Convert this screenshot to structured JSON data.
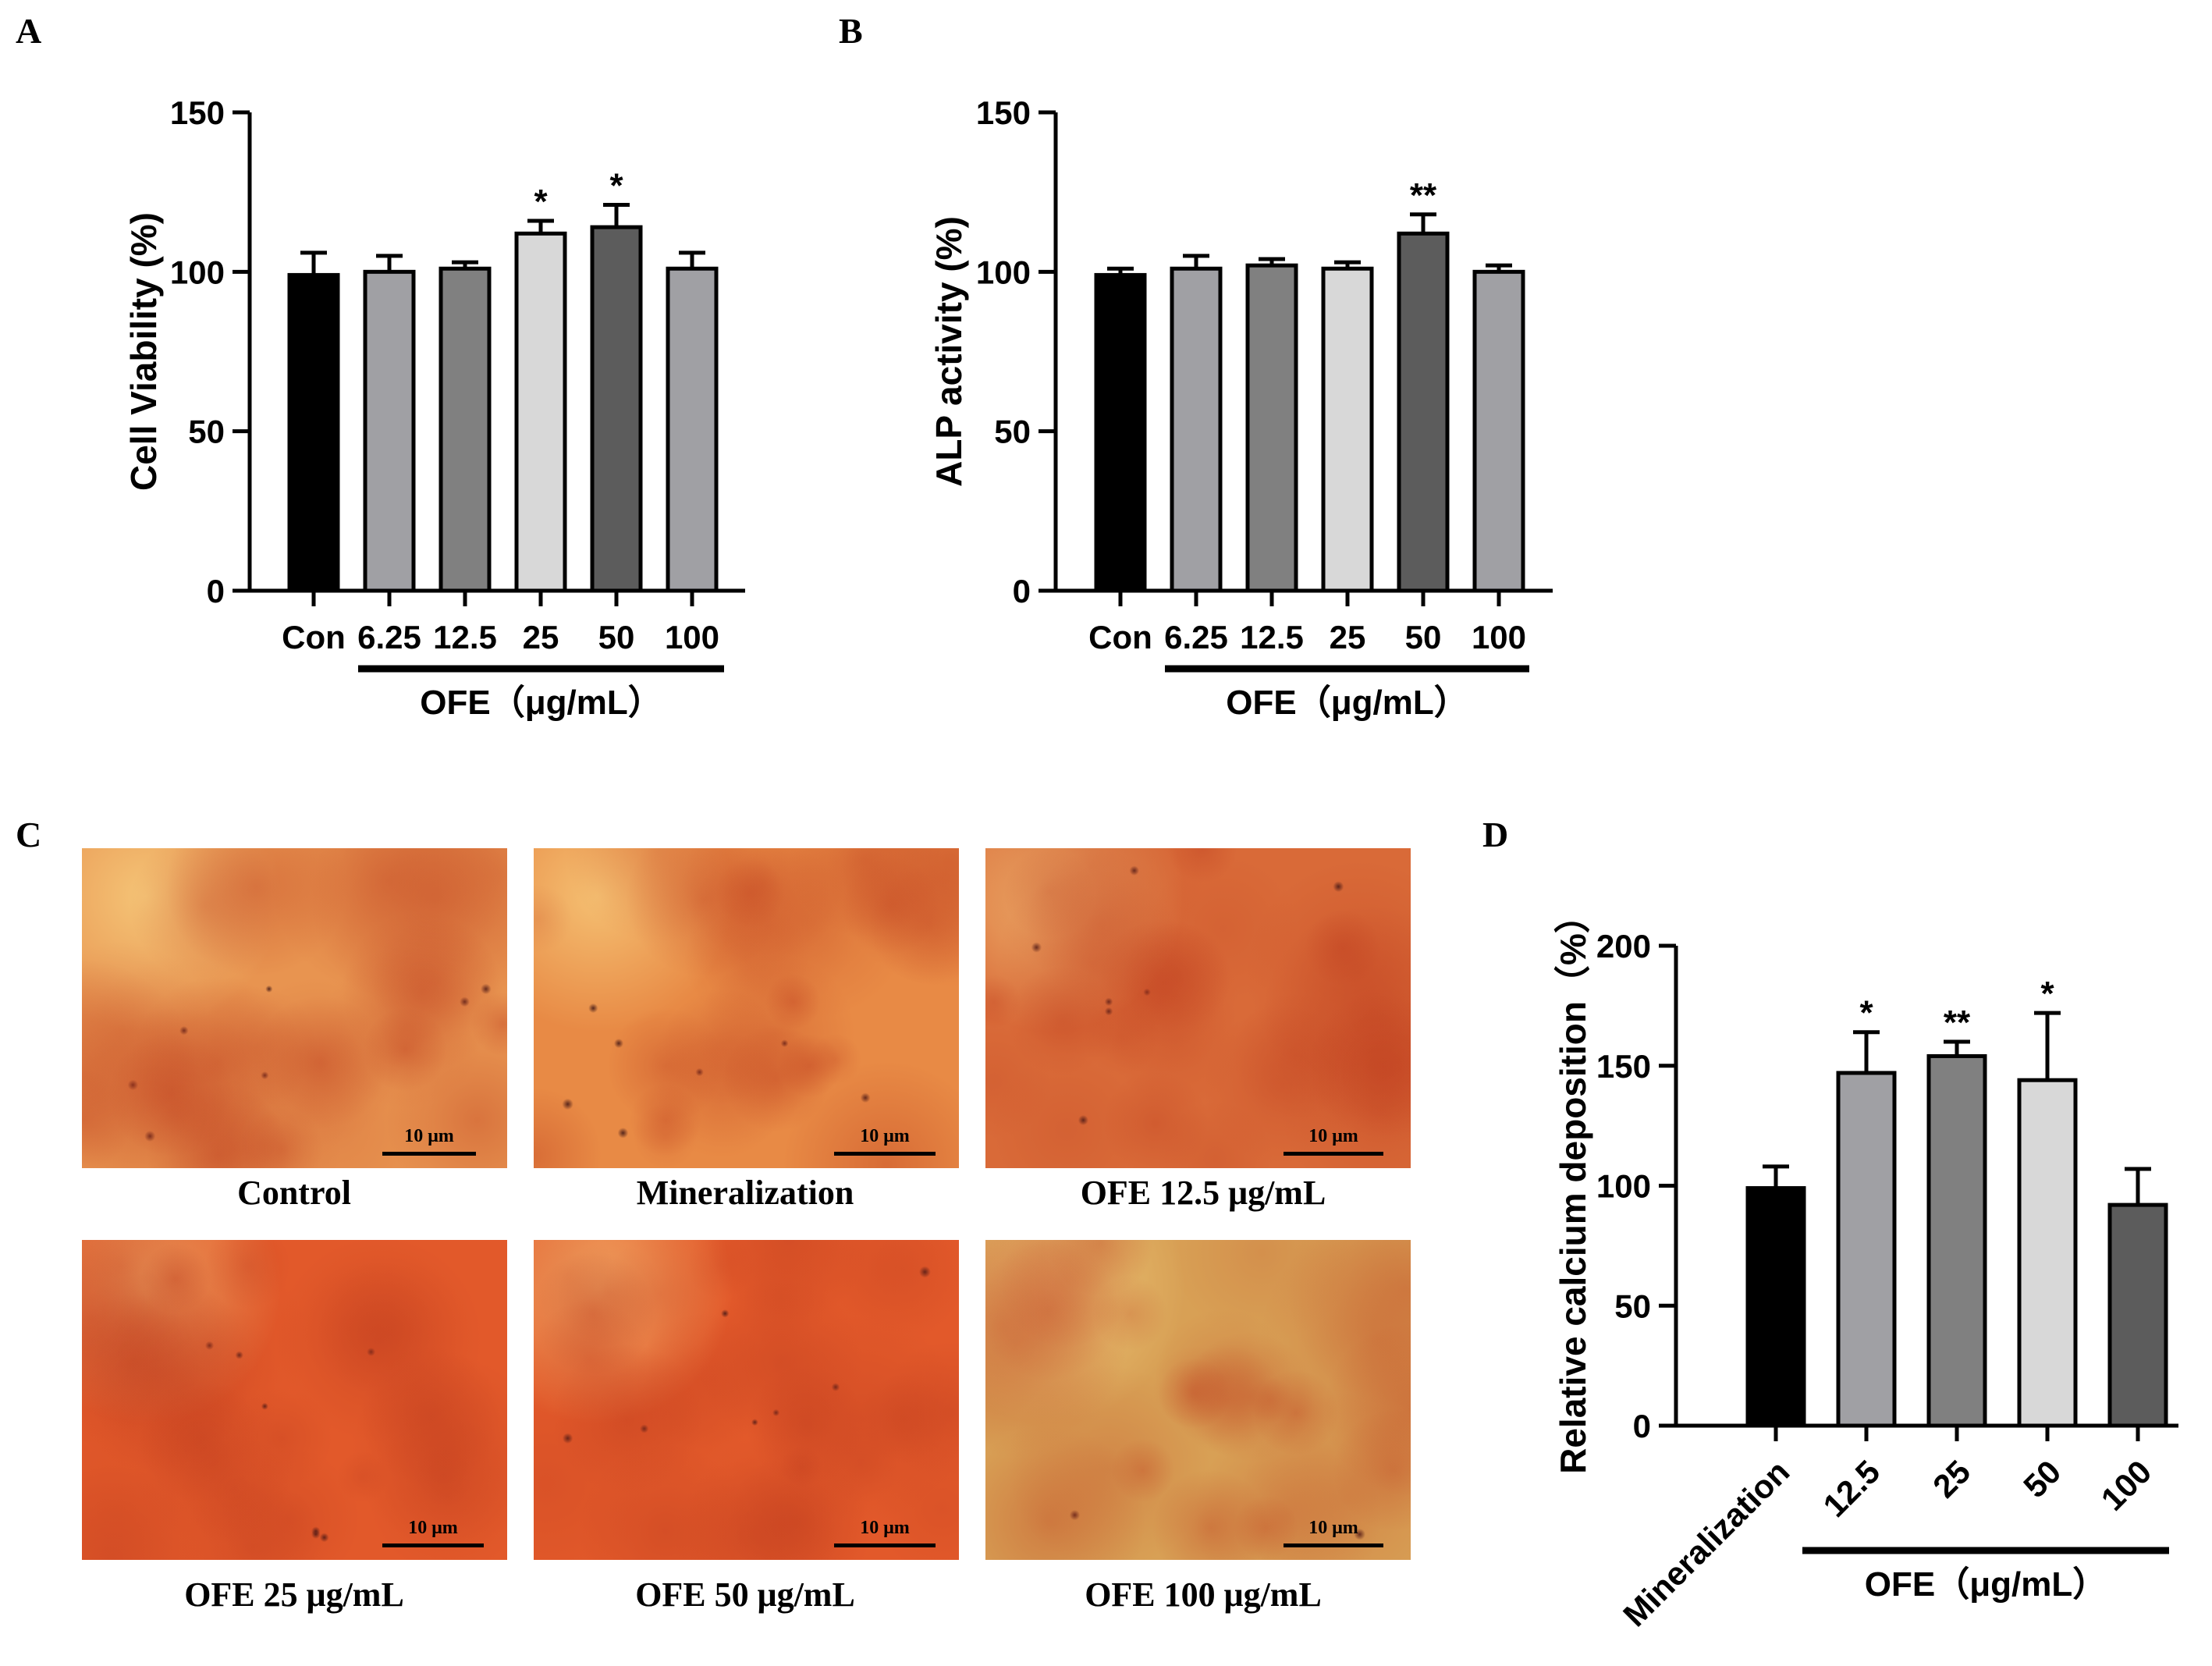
{
  "panel_letters": {
    "a": "A",
    "b": "B",
    "c": "C",
    "d": "D"
  },
  "chart_data": [
    {
      "id": "A",
      "type": "bar",
      "ylabel": "Cell Viability (%)",
      "ylim": [
        0,
        150
      ],
      "yticks": [
        0,
        50,
        100,
        150
      ],
      "categories": [
        "Con",
        "6.25",
        "12.5",
        "25",
        "50",
        "100"
      ],
      "values": [
        99,
        100,
        101,
        112,
        114,
        101
      ],
      "errors": [
        7,
        5,
        2,
        4,
        7,
        5
      ],
      "significance": [
        "",
        "",
        "",
        "*",
        "*",
        ""
      ],
      "colors": [
        "#000000",
        "#a0a0a4",
        "#808080",
        "#d8d8d8",
        "#5c5c5c",
        "#a0a0a4"
      ],
      "group_label": "OFE（μg/mL）"
    },
    {
      "id": "B",
      "type": "bar",
      "ylabel": "ALP activity (%)",
      "ylim": [
        0,
        150
      ],
      "yticks": [
        0,
        50,
        100,
        150
      ],
      "categories": [
        "Con",
        "6.25",
        "12.5",
        "25",
        "50",
        "100"
      ],
      "values": [
        99,
        101,
        102,
        101,
        112,
        100
      ],
      "errors": [
        2,
        4,
        2,
        2,
        6,
        2
      ],
      "significance": [
        "",
        "",
        "",
        "",
        "**",
        ""
      ],
      "colors": [
        "#000000",
        "#a0a0a4",
        "#808080",
        "#d8d8d8",
        "#5c5c5c",
        "#a0a0a4"
      ],
      "group_label": "OFE（μg/mL）"
    },
    {
      "id": "D",
      "type": "bar",
      "ylabel": "Relative calcium deposition（%）",
      "ylim": [
        0,
        200
      ],
      "yticks": [
        0,
        50,
        100,
        150,
        200
      ],
      "categories": [
        "Mineralization",
        "12.5",
        "25",
        "50",
        "100"
      ],
      "values": [
        99,
        147,
        154,
        144,
        92
      ],
      "errors": [
        9,
        17,
        6,
        28,
        15
      ],
      "significance": [
        "",
        "*",
        "**",
        "*",
        ""
      ],
      "colors": [
        "#000000",
        "#a0a0a4",
        "#808080",
        "#d8d8d8",
        "#5c5c5c"
      ],
      "group_label": "OFE（μg/mL）"
    }
  ],
  "micrographs": [
    {
      "caption": "Control",
      "scale_label": "10 μm",
      "tone": "#e89450"
    },
    {
      "caption": "Mineralization",
      "scale_label": "10 μm",
      "tone": "#e88a45"
    },
    {
      "caption": "OFE 12.5 μg/mL",
      "scale_label": "10 μm",
      "tone": "#d96a38"
    },
    {
      "caption": "OFE 25 μg/mL",
      "scale_label": "10 μm",
      "tone": "#e2592a"
    },
    {
      "caption": "OFE 50 μg/mL",
      "scale_label": "10 μm",
      "tone": "#e2592a"
    },
    {
      "caption": "OFE 100 μg/mL",
      "scale_label": "10 μm",
      "tone": "#d8a055"
    }
  ]
}
